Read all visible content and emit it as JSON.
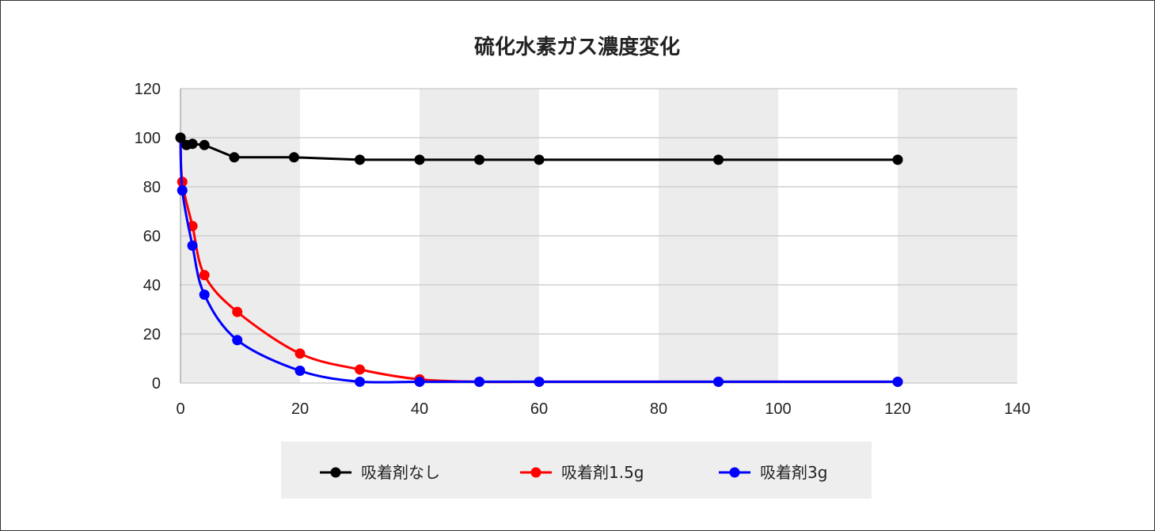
{
  "chart_data": {
    "type": "line",
    "title": "硫化水素ガス濃度変化",
    "xlabel": "",
    "ylabel": "",
    "xlim": [
      0,
      140
    ],
    "ylim": [
      0,
      120
    ],
    "x_ticks": [
      0,
      20,
      40,
      60,
      80,
      100,
      120,
      140
    ],
    "y_ticks": [
      0,
      20,
      40,
      60,
      80,
      100,
      120
    ],
    "grid": "horizontal",
    "background_bands": "alternating gray vertical bands",
    "legend_position": "bottom",
    "series": [
      {
        "name": "吸着剤なし",
        "color": "#000000",
        "smooth": false,
        "x": [
          0,
          1,
          2,
          4,
          9,
          19,
          30,
          40,
          50,
          60,
          90,
          120
        ],
        "y": [
          100,
          97,
          97.5,
          97,
          92,
          92,
          91,
          91,
          91,
          91,
          91,
          91
        ]
      },
      {
        "name": "吸着剤1.5g",
        "color": "#ff0000",
        "smooth": true,
        "x": [
          0,
          0.3,
          2,
          4,
          9.5,
          20,
          30,
          40,
          50,
          60,
          90,
          120
        ],
        "y": [
          100,
          82,
          64,
          44,
          29,
          12,
          5.5,
          1.5,
          0.5,
          0.5,
          0.5,
          0.5
        ]
      },
      {
        "name": "吸着剤3g",
        "color": "#0000ff",
        "smooth": true,
        "x": [
          0,
          0.3,
          2,
          4,
          9.5,
          20,
          30,
          40,
          50,
          60,
          90,
          120
        ],
        "y": [
          100,
          78.5,
          56,
          36,
          17.5,
          5,
          0.5,
          0.5,
          0.5,
          0.5,
          0.5,
          0.5
        ]
      }
    ]
  }
}
